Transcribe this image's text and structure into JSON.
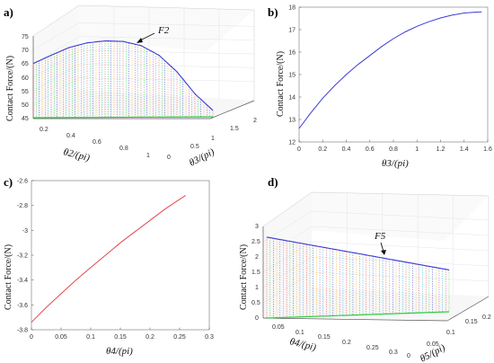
{
  "panels": {
    "a": "a)",
    "b": "b)",
    "c": "c)",
    "d": "d)"
  },
  "colors": {
    "blue": "#3b3bd6",
    "red": "#e8474b",
    "green": "#2ecc40",
    "axis": "#555555",
    "grid": "#e4e4e4",
    "bg": "#ffffff"
  },
  "chart_data": [
    {
      "id": "a",
      "type": "line",
      "ylabel": "Contact Force/(N)",
      "xlabel": "θ2/(pi)",
      "zlabel": "θ3/(pi)",
      "annotation": "F2",
      "y_ticks": [
        "45",
        "50",
        "55",
        "60",
        "65",
        "70",
        "75"
      ],
      "x_ticks": [
        "0.2",
        "0.4",
        "0.6",
        "0.8",
        "1"
      ],
      "z_ticks": [
        "0",
        "0.5",
        "1",
        "1.5",
        "2"
      ],
      "ylim": [
        45,
        75
      ],
      "series": [
        {
          "x": [
            0,
            0.1,
            0.2,
            0.3,
            0.4,
            0.5,
            0.6,
            0.7,
            0.8,
            0.9,
            1.0
          ],
          "values": [
            65,
            68,
            70.8,
            72.5,
            73.2,
            73,
            71.5,
            68,
            62,
            54,
            48
          ]
        }
      ]
    },
    {
      "id": "b",
      "type": "line",
      "ylabel": "Contact Force/(N)",
      "xlabel": "θ3/(pi)",
      "x_ticks": [
        "0",
        "0.2",
        "0.4",
        "0.6",
        "0.8",
        "1",
        "1.2",
        "1.4",
        "1.6"
      ],
      "y_ticks": [
        "12",
        "13",
        "14",
        "15",
        "16",
        "17",
        "18"
      ],
      "xlim": [
        0,
        1.6
      ],
      "ylim": [
        12,
        18
      ],
      "series": [
        {
          "x": [
            0,
            0.1,
            0.2,
            0.3,
            0.4,
            0.5,
            0.6,
            0.7,
            0.8,
            0.9,
            1.0,
            1.1,
            1.2,
            1.3,
            1.4,
            1.5,
            1.55
          ],
          "values": [
            12.6,
            13.3,
            13.95,
            14.5,
            15.0,
            15.45,
            15.85,
            16.25,
            16.6,
            16.9,
            17.15,
            17.35,
            17.52,
            17.65,
            17.74,
            17.78,
            17.79
          ]
        }
      ]
    },
    {
      "id": "c",
      "type": "line",
      "ylabel": "Contact Force/(N)",
      "xlabel": "θ4/(pi)",
      "x_ticks": [
        "0",
        "0.05",
        "0.1",
        "0.15",
        "0.2",
        "0.25",
        "0.3"
      ],
      "y_ticks": [
        "-3.8",
        "-3.6",
        "-3.4",
        "-3.2",
        "-3",
        "-2.8",
        "-2.6"
      ],
      "xlim": [
        0,
        0.3
      ],
      "ylim": [
        -3.8,
        -2.6
      ],
      "series": [
        {
          "x": [
            0,
            0.025,
            0.05,
            0.075,
            0.1,
            0.125,
            0.15,
            0.175,
            0.2,
            0.225,
            0.25,
            0.26
          ],
          "values": [
            -3.74,
            -3.62,
            -3.51,
            -3.4,
            -3.3,
            -3.2,
            -3.1,
            -3.01,
            -2.92,
            -2.83,
            -2.75,
            -2.72
          ]
        }
      ]
    },
    {
      "id": "d",
      "type": "line",
      "ylabel": "Contact Force/(N)",
      "xlabel": "θ4/(pi)",
      "zlabel": "θ5/(pi)",
      "annotation": "F5",
      "y_ticks": [
        "0",
        "0.5",
        "1",
        "1.5",
        "2",
        "2.5",
        "3"
      ],
      "x_ticks": [
        "0.05",
        "0.1",
        "0.15",
        "0.2",
        "0.25",
        "0.3"
      ],
      "z_ticks": [
        "0",
        "0.05",
        "0.1",
        "0.15",
        "0.2"
      ],
      "ylim": [
        0,
        3
      ],
      "series": [
        {
          "x": [
            0,
            0.25
          ],
          "values": [
            2.65,
            1.4
          ]
        }
      ]
    }
  ]
}
